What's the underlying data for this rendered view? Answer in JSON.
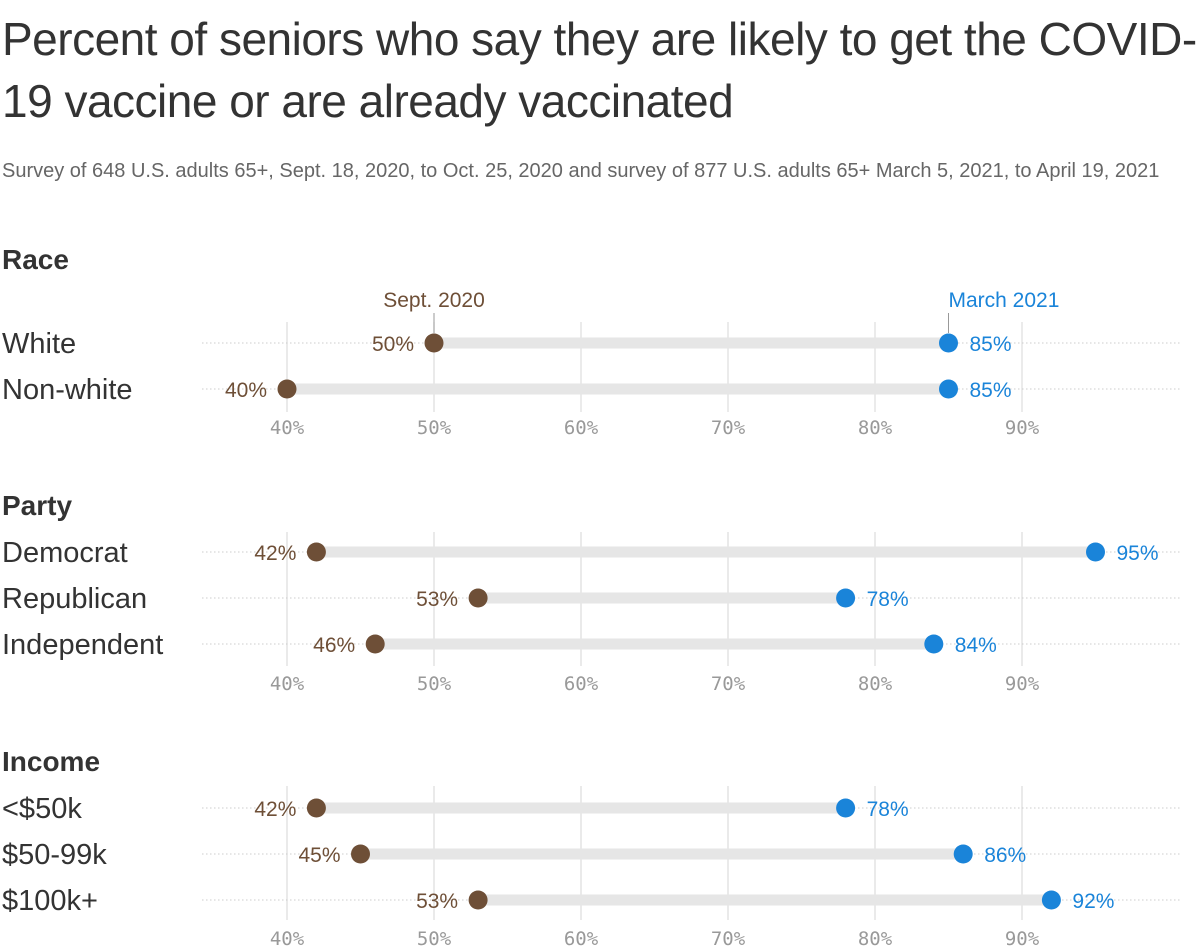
{
  "title": "Percent of seniors who say they are likely to get the COVID-19 vaccine or are already vaccinated",
  "subtitle": "Survey of 648 U.S. adults 65+, Sept. 18, 2020, to Oct. 25, 2020 and survey of 877 U.S. adults 65+ March 5, 2021, to April 19, 2021",
  "colors": {
    "sept": "#6e4f37",
    "march": "#1a84d9",
    "bar": "#e6e6e6",
    "grid": "#dddddd",
    "dots": "#cccccc"
  },
  "chart_data": {
    "type": "dumbbell",
    "series": [
      {
        "name": "Sept. 2020",
        "color": "#6e4f37"
      },
      {
        "name": "March 2021",
        "color": "#1a84d9"
      }
    ],
    "xlim": [
      34,
      98
    ],
    "ticks": [
      40,
      50,
      60,
      70,
      80,
      90
    ],
    "tick_format": "%",
    "groups": [
      {
        "name": "Race",
        "categories": [
          "White",
          "Non-white"
        ],
        "sept2020": [
          50,
          40
        ],
        "march2021": [
          85,
          85
        ]
      },
      {
        "name": "Party",
        "categories": [
          "Democrat",
          "Republican",
          "Independent"
        ],
        "sept2020": [
          42,
          53,
          46
        ],
        "march2021": [
          95,
          78,
          84
        ]
      },
      {
        "name": "Income",
        "categories": [
          "<$50k",
          "$50-99k",
          "$100k+"
        ],
        "sept2020": [
          42,
          45,
          53
        ],
        "march2021": [
          78,
          86,
          92
        ]
      }
    ]
  }
}
